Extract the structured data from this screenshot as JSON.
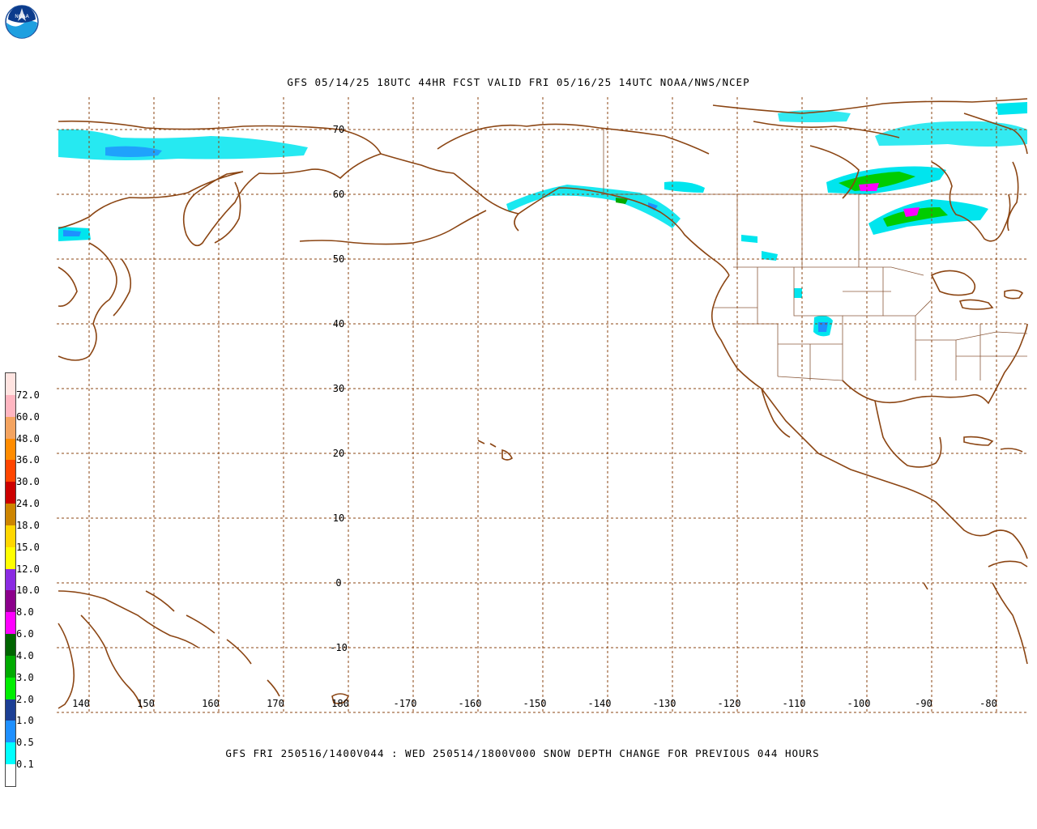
{
  "title": "GFS 05/14/25 18UTC 44HR FCST VALID FRI 05/16/25 14UTC NOAA/NWS/NCEP",
  "caption": "GFS FRI 250516/1400V044 : WED 250514/1800V000 SNOW DEPTH CHANGE FOR PREVIOUS 044 HOURS",
  "logo_text": "NOAA",
  "colors": {
    "coast": "#8b4513",
    "grid": "#8b4513",
    "border": "#8b5a3c",
    "snow_light": "#00e5ee",
    "snow_mid": "#1e90ff",
    "snow_green": "#00cc00",
    "snow_magenta": "#ff00ff"
  },
  "latitude_labels": [
    "70",
    "60",
    "50",
    "40",
    "30",
    "20",
    "10",
    "0",
    "-10"
  ],
  "longitude_labels": [
    "140",
    "150",
    "160",
    "170",
    "180",
    "-170",
    "-160",
    "-150",
    "-140",
    "-130",
    "-120",
    "-110",
    "-100",
    "-90",
    "-80"
  ],
  "legend": {
    "labels": [
      "72.0",
      "60.0",
      "48.0",
      "36.0",
      "30.0",
      "24.0",
      "18.0",
      "15.0",
      "12.0",
      "10.0",
      "8.0",
      "6.0",
      "4.0",
      "3.0",
      "2.0",
      "1.0",
      "0.5",
      "0.1"
    ],
    "colors": [
      "#ffe4e1",
      "#ffb6c1",
      "#f4a460",
      "#ff8c00",
      "#ff4500",
      "#cc0000",
      "#cd8500",
      "#ffd700",
      "#ffff00",
      "#8a2be2",
      "#8b008b",
      "#ff00ff",
      "#006400",
      "#00aa00",
      "#00ee00",
      "#1c3f94",
      "#1e90ff",
      "#00ffff",
      "#ffffff"
    ]
  }
}
